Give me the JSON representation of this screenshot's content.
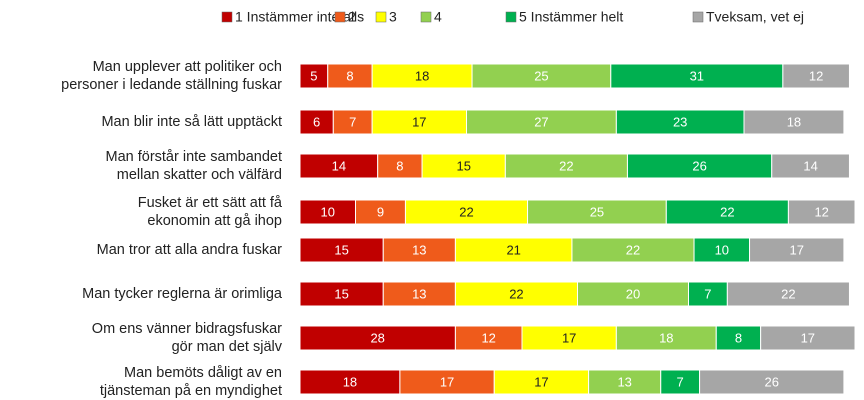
{
  "chart_data": {
    "type": "stacked-bar-horizontal",
    "categories": [
      "Man upplever att politiker och\npersoner i ledande ställning fuskar",
      "Man blir inte så lätt upptäckt",
      "Man förstår inte sambandet\nmellan skatter och välfärd",
      "Fusket är ett sätt att få\nekonomin att gå ihop",
      "Man tror att alla andra fuskar",
      "Man tycker reglerna är orimliga",
      "Om ens vänner bidragsfuskar\ngör man det själv",
      "Man bemöts dåligt av en\ntjänsteman på en myndighet"
    ],
    "series": [
      {
        "name": "1 Instämmer inte alls",
        "color": "#c00000",
        "values": [
          5,
          6,
          14,
          10,
          15,
          15,
          28,
          18
        ]
      },
      {
        "name": "2",
        "color": "#ef5b1b",
        "values": [
          8,
          7,
          8,
          9,
          13,
          13,
          12,
          17
        ]
      },
      {
        "name": "3",
        "color": "#ffff00",
        "values": [
          18,
          17,
          15,
          22,
          21,
          22,
          17,
          17
        ]
      },
      {
        "name": "4",
        "color": "#92d050",
        "values": [
          25,
          27,
          22,
          25,
          22,
          20,
          18,
          13
        ]
      },
      {
        "name": "5 Instämmer helt",
        "color": "#00b050",
        "values": [
          31,
          23,
          26,
          22,
          10,
          7,
          8,
          7
        ]
      },
      {
        "name": "Tveksam, vet ej",
        "color": "#a6a6a6",
        "values": [
          12,
          18,
          14,
          12,
          17,
          22,
          17,
          26
        ]
      }
    ],
    "xlim": [
      0,
      100
    ],
    "legend": "top"
  }
}
